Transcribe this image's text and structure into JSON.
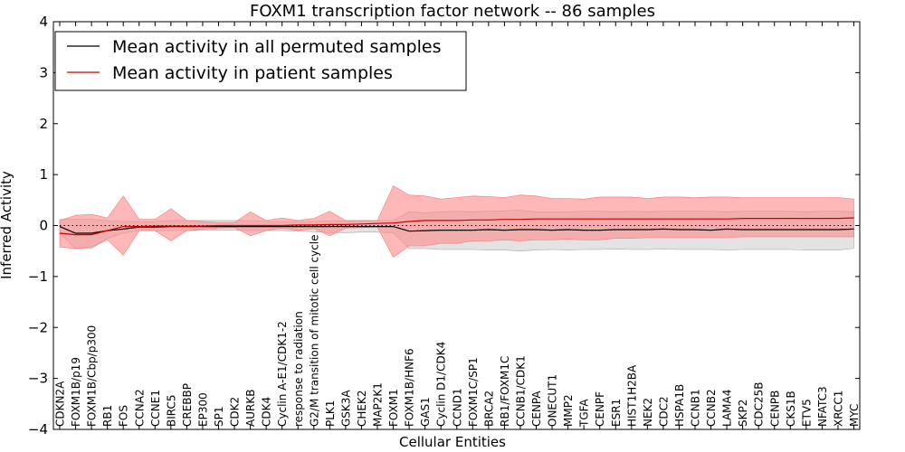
{
  "chart_data": {
    "type": "line",
    "title": "FOXM1 transcription factor network -- 86 samples",
    "xlabel": "Cellular Entities",
    "ylabel": "Inferred Activity",
    "ylim": [
      -4,
      4
    ],
    "yticks": [
      -4,
      -3,
      -2,
      -1,
      0,
      1,
      2,
      3,
      4
    ],
    "ytick_labels": [
      "−4",
      "−3",
      "−2",
      "−1",
      "0",
      "1",
      "2",
      "3",
      "4"
    ],
    "legend_position": "top-left",
    "categories": [
      "CDKN2A",
      "FOXM1B/p19",
      "FOXM1B/Cbp/p300",
      "RB1",
      "FOS",
      "CCNA2",
      "CCNE1",
      "BIRC5",
      "CREBBP",
      "EP300",
      "SP1",
      "CDK2",
      "AURKB",
      "CDK4",
      "Cyclin A-E1/CDK1-2",
      "response to radiation",
      "G2/M transition of mitotic cell cycle",
      "PLK1",
      "GSK3A",
      "CHEK2",
      "MAP2K1",
      "FOXM1",
      "FOXM1B/HNF6",
      "GAS1",
      "Cyclin D1/CDK4",
      "CCND1",
      "FOXM1C/SP1",
      "BRCA2",
      "RB1/FOXM1C",
      "CCNB1/CDK1",
      "CENPA",
      "ONECUT1",
      "MMP2",
      "TGFA",
      "CENPF",
      "ESR1",
      "HIST1H2BA",
      "NEK2",
      "CDC2",
      "HSPA1B",
      "CCNB1",
      "CCNB2",
      "LAMA4",
      "SKP2",
      "CDC25B",
      "CENPB",
      "CKS1B",
      "ETV5",
      "NFATC3",
      "XRCC1",
      "MYC"
    ],
    "series": [
      {
        "name": "Mean activity in all permuted samples",
        "color": "#000000",
        "values": [
          -0.02,
          -0.15,
          -0.15,
          -0.1,
          -0.07,
          -0.03,
          -0.03,
          -0.02,
          -0.02,
          -0.02,
          -0.02,
          -0.02,
          -0.02,
          -0.02,
          -0.02,
          -0.02,
          -0.02,
          -0.02,
          -0.02,
          -0.02,
          -0.02,
          -0.02,
          -0.11,
          -0.1,
          -0.09,
          -0.09,
          -0.09,
          -0.08,
          -0.09,
          -0.08,
          -0.08,
          -0.09,
          -0.08,
          -0.09,
          -0.09,
          -0.08,
          -0.08,
          -0.08,
          -0.07,
          -0.08,
          -0.08,
          -0.09,
          -0.07,
          -0.08,
          -0.08,
          -0.08,
          -0.08,
          -0.08,
          -0.08,
          -0.08,
          -0.07
        ],
        "band_low": [
          -0.15,
          -0.45,
          -0.45,
          -0.25,
          -0.15,
          -0.1,
          -0.1,
          -0.1,
          -0.1,
          -0.09,
          -0.09,
          -0.09,
          -0.1,
          -0.1,
          -0.1,
          -0.11,
          -0.12,
          -0.14,
          -0.14,
          -0.13,
          -0.13,
          -0.14,
          -0.45,
          -0.45,
          -0.47,
          -0.47,
          -0.47,
          -0.48,
          -0.48,
          -0.5,
          -0.48,
          -0.47,
          -0.48,
          -0.47,
          -0.47,
          -0.46,
          -0.47,
          -0.47,
          -0.46,
          -0.47,
          -0.47,
          -0.47,
          -0.48,
          -0.47,
          -0.47,
          -0.47,
          -0.47,
          -0.48,
          -0.48,
          -0.48,
          -0.45
        ],
        "band_high": [
          0.12,
          0.12,
          0.12,
          0.1,
          0.08,
          0.08,
          0.08,
          0.1,
          0.1,
          0.1,
          0.1,
          0.1,
          0.1,
          0.08,
          0.08,
          0.08,
          0.08,
          0.09,
          0.09,
          0.1,
          0.1,
          0.1,
          0.27,
          0.25,
          0.27,
          0.28,
          0.27,
          0.28,
          0.29,
          0.3,
          0.27,
          0.27,
          0.27,
          0.28,
          0.28,
          0.27,
          0.28,
          0.27,
          0.28,
          0.28,
          0.28,
          0.28,
          0.27,
          0.28,
          0.28,
          0.28,
          0.28,
          0.27,
          0.28,
          0.28,
          0.27
        ]
      },
      {
        "name": "Mean activity in patient samples",
        "color": "#cc0000",
        "fill": "#ff8888",
        "values": [
          -0.15,
          -0.18,
          -0.18,
          -0.1,
          -0.02,
          -0.02,
          -0.01,
          -0.01,
          -0.01,
          -0.01,
          0.0,
          0.0,
          0.0,
          0.0,
          0.0,
          0.01,
          0.01,
          0.02,
          0.02,
          0.03,
          0.04,
          0.05,
          0.08,
          0.1,
          0.1,
          0.1,
          0.11,
          0.11,
          0.12,
          0.12,
          0.13,
          0.13,
          0.13,
          0.13,
          0.13,
          0.13,
          0.13,
          0.13,
          0.13,
          0.13,
          0.13,
          0.13,
          0.13,
          0.14,
          0.14,
          0.14,
          0.14,
          0.14,
          0.14,
          0.14,
          0.15
        ],
        "band_low": [
          -0.42,
          -0.45,
          -0.42,
          -0.28,
          -0.58,
          -0.1,
          -0.1,
          -0.3,
          -0.1,
          -0.07,
          -0.05,
          -0.04,
          -0.2,
          -0.1,
          -0.05,
          -0.1,
          -0.06,
          -0.2,
          -0.05,
          -0.04,
          -0.03,
          -0.62,
          -0.4,
          -0.4,
          -0.35,
          -0.35,
          -0.3,
          -0.3,
          -0.28,
          -0.3,
          -0.28,
          -0.28,
          -0.27,
          -0.28,
          -0.28,
          -0.25,
          -0.25,
          -0.24,
          -0.24,
          -0.24,
          -0.24,
          -0.24,
          -0.24,
          -0.22,
          -0.22,
          -0.22,
          -0.22,
          -0.22,
          -0.22,
          -0.22,
          -0.22
        ],
        "band_high": [
          0.1,
          0.2,
          0.22,
          0.15,
          0.58,
          0.12,
          0.12,
          0.33,
          0.1,
          0.08,
          0.06,
          0.06,
          0.27,
          0.1,
          0.15,
          0.1,
          0.14,
          0.28,
          0.1,
          0.1,
          0.1,
          0.78,
          0.6,
          0.58,
          0.52,
          0.55,
          0.58,
          0.57,
          0.55,
          0.6,
          0.58,
          0.53,
          0.53,
          0.52,
          0.56,
          0.56,
          0.56,
          0.53,
          0.56,
          0.56,
          0.55,
          0.56,
          0.56,
          0.55,
          0.55,
          0.55,
          0.55,
          0.55,
          0.55,
          0.55,
          0.52
        ]
      }
    ],
    "reference_line": {
      "y": 0,
      "style": "dotted"
    }
  }
}
